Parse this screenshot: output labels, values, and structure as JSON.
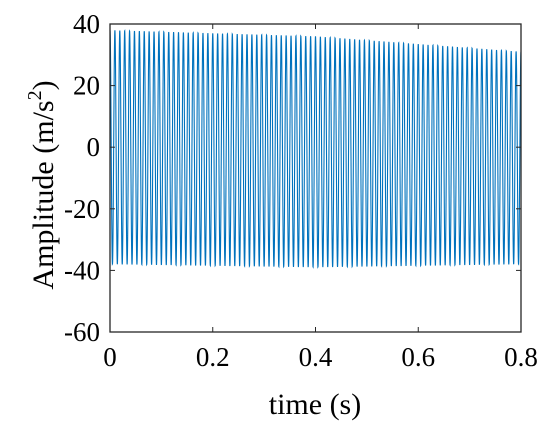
{
  "chart_data": {
    "type": "line",
    "title": "",
    "xlabel": "time (s)",
    "ylabel_main": "Amplitude (m/s",
    "ylabel_sup": "2",
    "ylabel_close": ")",
    "xlim": [
      0,
      0.8
    ],
    "ylim": [
      -60,
      40
    ],
    "xticks": [
      0,
      0.2,
      0.4,
      0.6,
      0.8
    ],
    "xtick_labels": [
      "0",
      "0.2",
      "0.4",
      "0.6",
      "0.8"
    ],
    "yticks": [
      -60,
      -40,
      -20,
      0,
      20,
      40
    ],
    "ytick_labels": [
      "-60",
      "-40",
      "-20",
      "0",
      "20",
      "40"
    ],
    "grid": false,
    "series": [
      {
        "color": "#0072bd",
        "signal": {
          "kind": "oscillation",
          "frequency_hz": 105,
          "max_envelope": [
            [
              0,
              38
            ],
            [
              0.4,
              36
            ],
            [
              0.8,
              31
            ]
          ],
          "min_envelope": [
            [
              0,
              -38
            ],
            [
              0.4,
              -39
            ],
            [
              0.8,
              -38
            ]
          ]
        }
      }
    ]
  }
}
